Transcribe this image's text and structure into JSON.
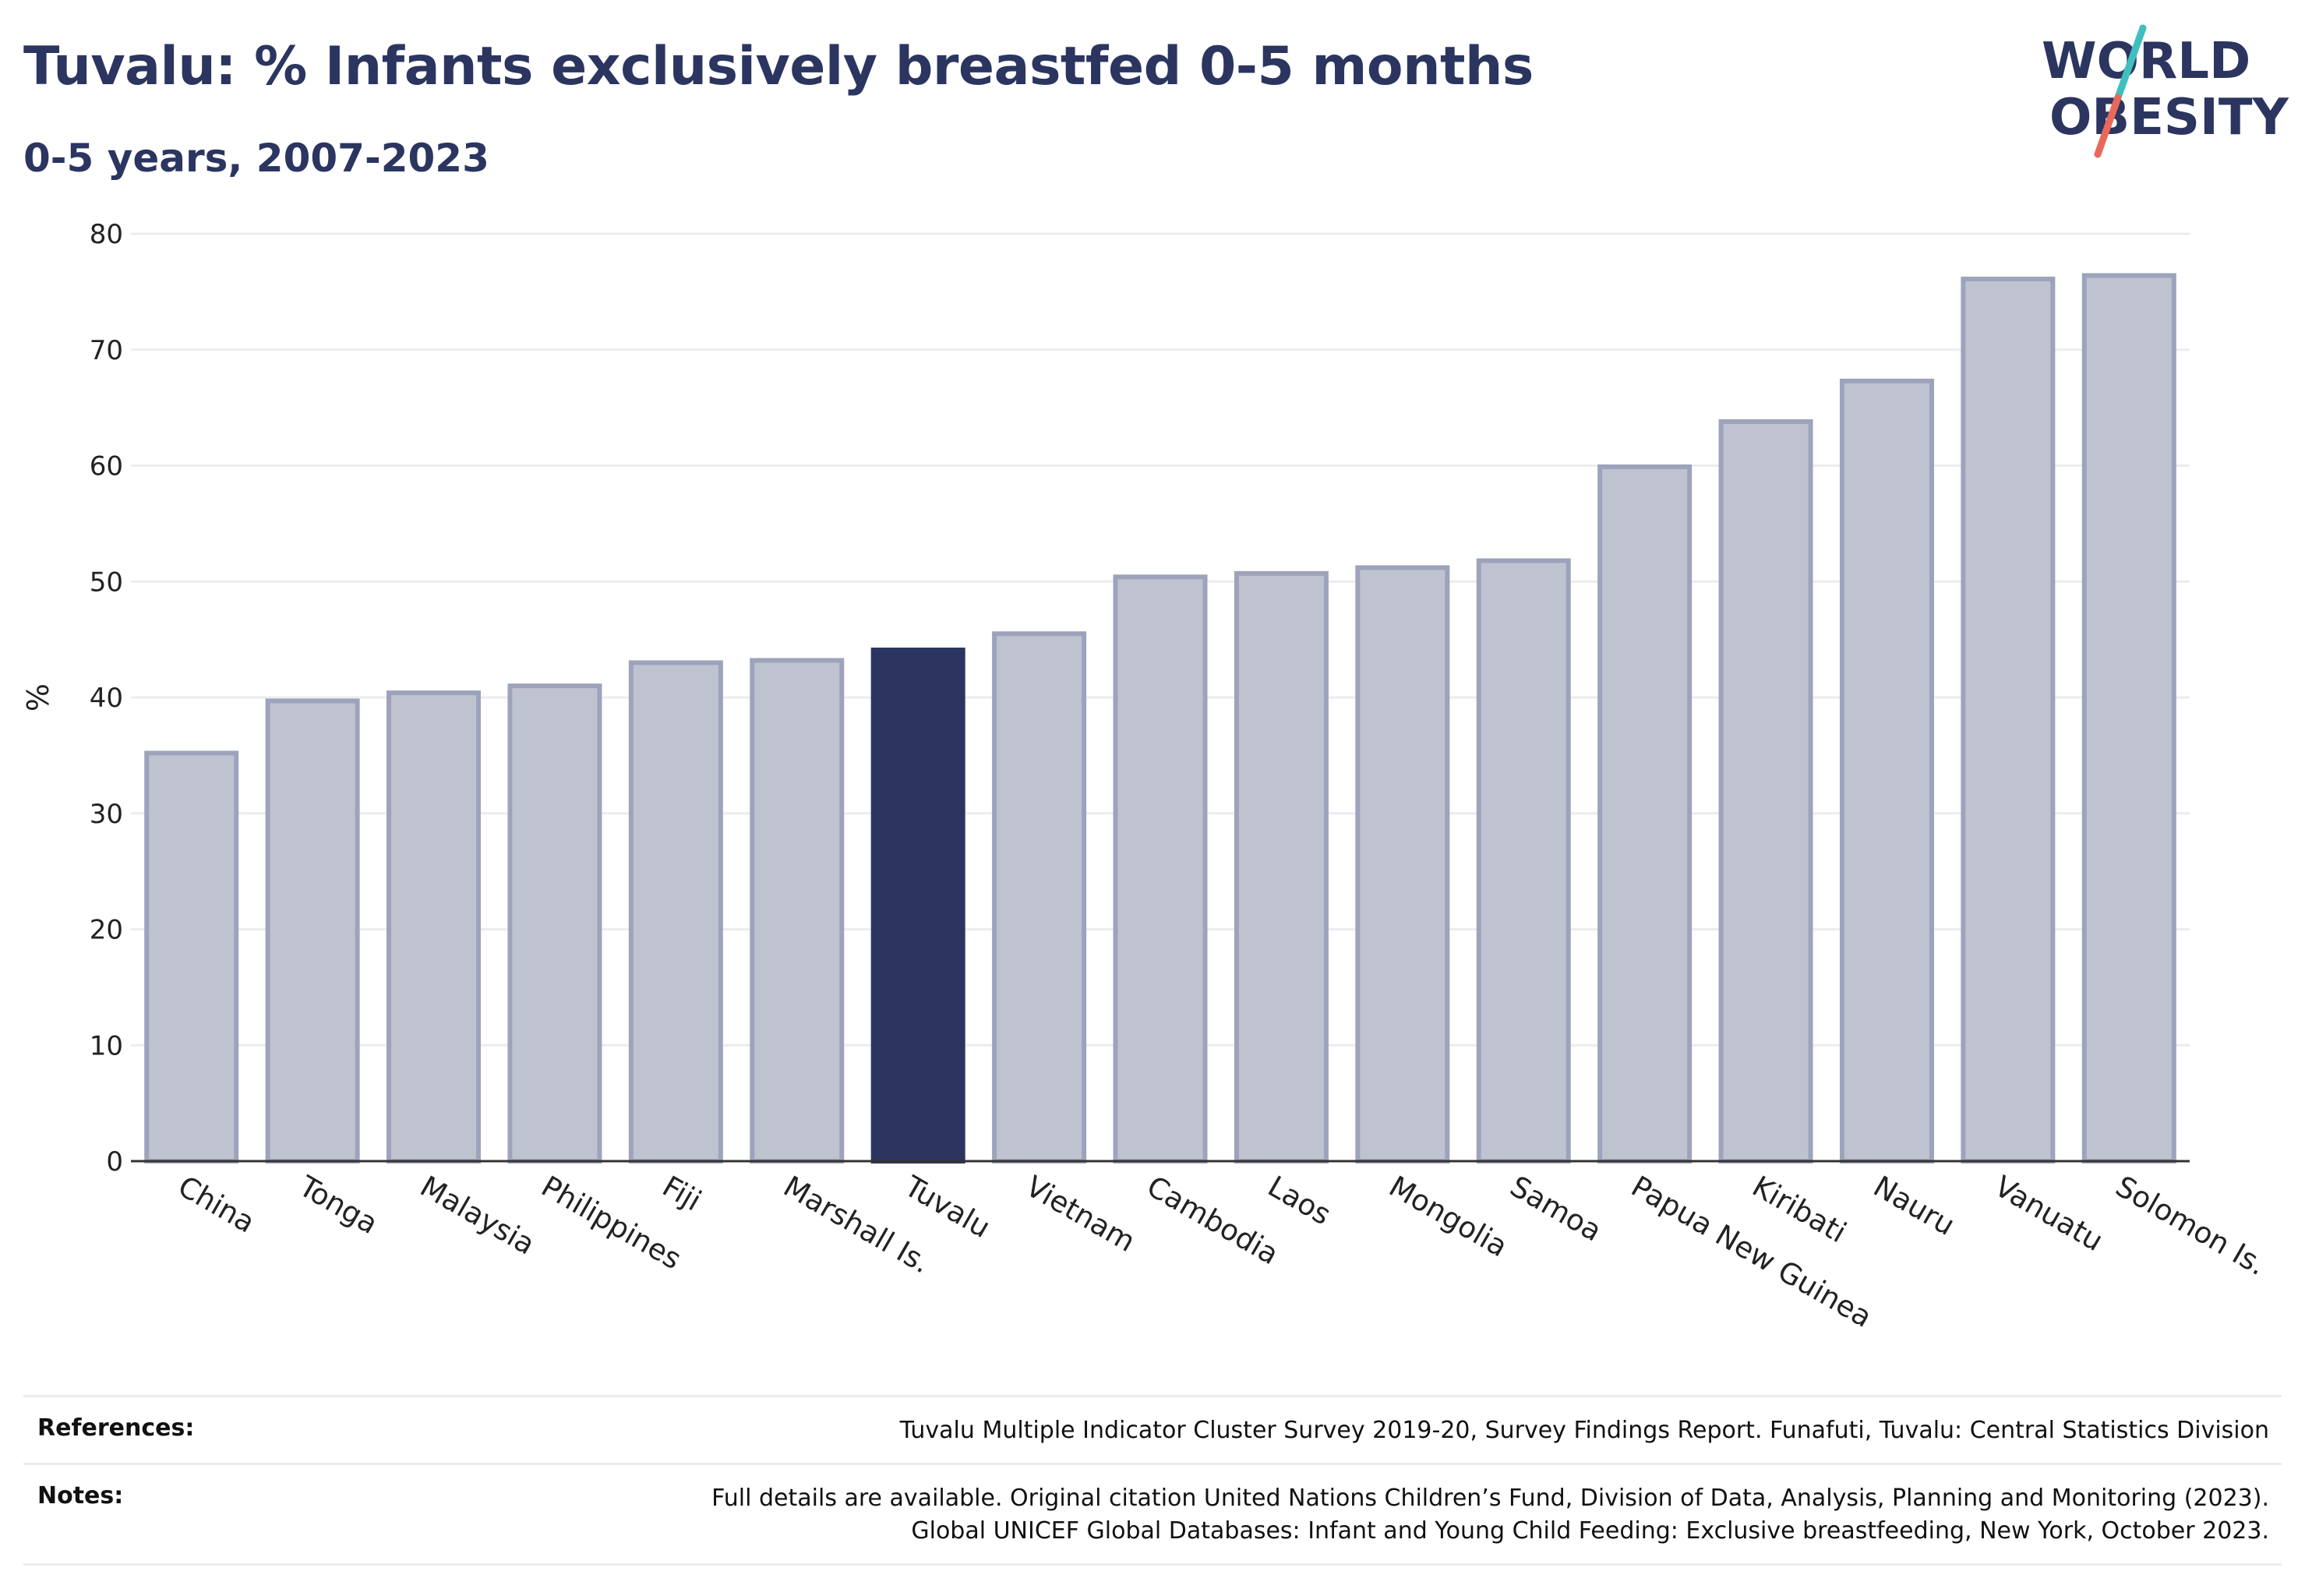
{
  "header": {
    "title": "Tuvalu: % Infants exclusively breastfed 0-5 months",
    "subtitle": "0-5 years, 2007-2023"
  },
  "logo": {
    "line1": "WORLD",
    "line2": "OBESITY",
    "slash_colors": [
      "#3fbfbf",
      "#e8695a"
    ]
  },
  "chart_data": {
    "type": "bar",
    "ylabel": "%",
    "ylim": [
      0,
      80
    ],
    "yticks": [
      0,
      10,
      20,
      30,
      40,
      50,
      60,
      70,
      80
    ],
    "grid": true,
    "highlight": "Tuvalu",
    "colors": {
      "bar": "#bfc3d0",
      "bar_edge": "#9ea3bc",
      "highlight": "#2b3560",
      "grid": "#ececf0",
      "axis": "#333333"
    },
    "categories": [
      "China",
      "Tonga",
      "Malaysia",
      "Philippines",
      "Fiji",
      "Marshall Is.",
      "Tuvalu",
      "Vietnam",
      "Cambodia",
      "Laos",
      "Mongolia",
      "Samoa",
      "Papua New Guinea",
      "Kiribati",
      "Nauru",
      "Vanuatu",
      "Solomon Is."
    ],
    "values": [
      35.2,
      39.7,
      40.4,
      41.0,
      43.0,
      43.2,
      44.1,
      45.5,
      50.4,
      50.7,
      51.2,
      51.8,
      59.9,
      63.8,
      67.3,
      76.1,
      76.4
    ]
  },
  "footer": {
    "references_label": "References:",
    "references_text": "Tuvalu Multiple Indicator Cluster Survey 2019-20, Survey Findings Report. Funafuti, Tuvalu: Central Statistics Division",
    "notes_label": "Notes:",
    "notes_lines": [
      "Full details are available. Original citation United Nations Children’s Fund, Division of Data, Analysis, Planning and Monitoring (2023).",
      "Global UNICEF Global Databases: Infant and Young Child Feeding: Exclusive breastfeeding, New York, October 2023."
    ]
  }
}
